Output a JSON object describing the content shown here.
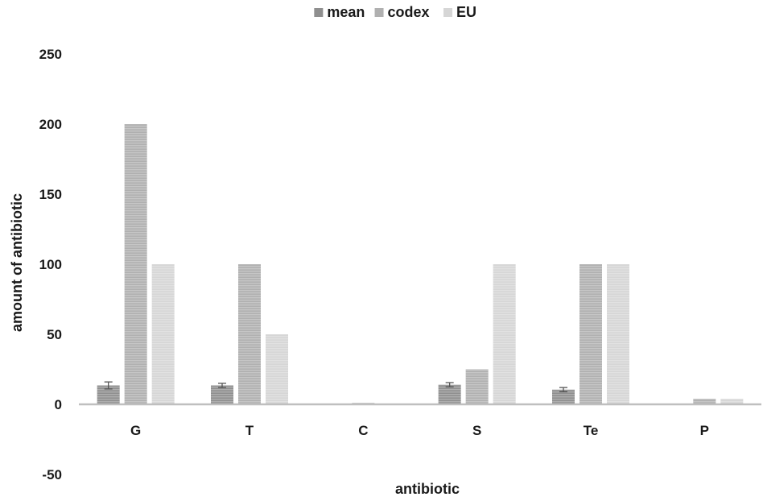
{
  "chart_data": {
    "type": "bar",
    "title": "",
    "xlabel": "antibiotic",
    "ylabel": "amount of  antibiotic",
    "ylim": [
      -50,
      250
    ],
    "yticks": [
      250,
      200,
      150,
      100,
      50,
      0,
      -50
    ],
    "grid": false,
    "legend": "top-center",
    "categories": [
      "G",
      "T",
      "C",
      "S",
      "Te",
      "P"
    ],
    "series": [
      {
        "name": "mean",
        "color": "#8f8f8f",
        "values": [
          13.5,
          13.5,
          0,
          14,
          10.5,
          -0.5
        ],
        "error": [
          2.5,
          1.5,
          0,
          1.5,
          1.5,
          0
        ]
      },
      {
        "name": "codex",
        "color": "#b0b0b0",
        "values": [
          200,
          100,
          1,
          25,
          100,
          4
        ],
        "error": [
          0,
          0,
          0,
          0,
          0,
          0
        ]
      },
      {
        "name": "EU",
        "color": "#d6d6d6",
        "values": [
          100,
          50,
          0,
          100,
          100,
          4
        ],
        "error": [
          0,
          0,
          0,
          0,
          0,
          0
        ]
      }
    ]
  }
}
